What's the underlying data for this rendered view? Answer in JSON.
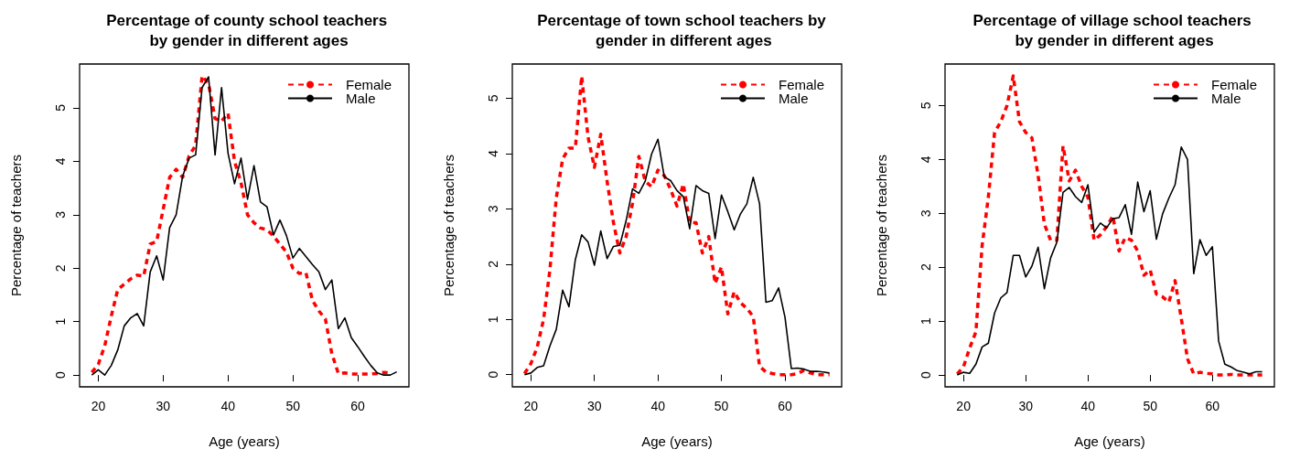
{
  "chart_data": [
    {
      "type": "line",
      "title": "Percentage of county school teachers by gender in different ages",
      "xlabel": "Age (years)",
      "ylabel": "Percentage of teachers",
      "xlim": [
        17.12,
        67.88
      ],
      "xticks": [
        20,
        30,
        40,
        50,
        60
      ],
      "ylim": [
        -0.22,
        5.82
      ],
      "yticks": [
        0,
        1,
        2,
        3,
        4,
        5
      ],
      "grid": false,
      "legend": "top right",
      "marker": "none",
      "series": [
        {
          "name": "Female",
          "color": "#ff0000",
          "line_style": "dashed",
          "x": [
            19,
            20,
            21,
            22,
            23,
            24,
            25,
            26,
            27,
            28,
            29,
            30,
            31,
            32,
            33,
            34,
            35,
            36,
            37,
            38,
            39,
            40,
            41,
            42,
            43,
            44,
            45,
            46,
            47,
            48,
            49,
            50,
            51,
            52,
            53,
            54,
            55,
            56,
            57,
            58,
            59,
            60,
            61,
            62,
            63,
            64,
            65
          ],
          "values": [
            0.05,
            0.2,
            0.55,
            1.1,
            1.6,
            1.7,
            1.8,
            1.87,
            1.85,
            2.45,
            2.5,
            3.1,
            3.7,
            3.85,
            3.7,
            4.1,
            4.3,
            5.6,
            5.45,
            4.8,
            4.75,
            4.9,
            4.0,
            3.6,
            3.0,
            2.85,
            2.75,
            2.72,
            2.6,
            2.45,
            2.3,
            2.0,
            1.9,
            1.92,
            1.4,
            1.2,
            1.05,
            0.4,
            0.03,
            0.04,
            0.02,
            0.02,
            0.02,
            0.02,
            0.03,
            0.05,
            0.04
          ]
        },
        {
          "name": "Male",
          "color": "#000000",
          "line_style": "solid",
          "x": [
            19,
            20,
            21,
            22,
            23,
            24,
            25,
            26,
            27,
            28,
            29,
            30,
            31,
            32,
            33,
            34,
            35,
            36,
            37,
            38,
            39,
            40,
            41,
            42,
            43,
            44,
            45,
            46,
            47,
            48,
            49,
            50,
            51,
            52,
            53,
            54,
            55,
            56,
            57,
            58,
            59,
            60,
            61,
            62,
            63,
            64,
            65,
            66
          ],
          "values": [
            0,
            0.1,
            0,
            0.18,
            0.47,
            0.92,
            1.07,
            1.15,
            0.92,
            1.93,
            2.23,
            1.78,
            2.76,
            3.0,
            3.72,
            4.06,
            4.12,
            5.38,
            5.58,
            4.12,
            5.38,
            4.15,
            3.58,
            4.06,
            3.29,
            3.92,
            3.24,
            3.15,
            2.62,
            2.9,
            2.61,
            2.19,
            2.37,
            2.22,
            2.07,
            1.93,
            1.6,
            1.78,
            0.87,
            1.07,
            0.7,
            0.53,
            0.35,
            0.18,
            0.04,
            0,
            0,
            0.06
          ]
        }
      ]
    },
    {
      "type": "line",
      "title": "Percentage of town school teachers by gender in different ages",
      "xlabel": "Age (years)",
      "ylabel": "Percentage of teachers",
      "xlim": [
        17.08,
        68.92
      ],
      "xticks": [
        20,
        30,
        40,
        50,
        60
      ],
      "ylim": [
        -0.22,
        5.62
      ],
      "yticks": [
        0,
        1,
        2,
        3,
        4,
        5
      ],
      "grid": false,
      "legend": "top right",
      "marker": "none",
      "series": [
        {
          "name": "Female",
          "color": "#ff0000",
          "line_style": "dashed",
          "x": [
            19,
            20,
            21,
            22,
            23,
            24,
            25,
            26,
            27,
            28,
            29,
            30,
            31,
            32,
            33,
            34,
            35,
            36,
            37,
            38,
            39,
            40,
            41,
            42,
            43,
            44,
            45,
            46,
            47,
            48,
            49,
            50,
            51,
            52,
            53,
            54,
            55,
            56,
            57,
            58,
            59,
            60,
            61,
            62,
            63,
            64,
            65,
            66,
            67
          ],
          "values": [
            0.02,
            0.2,
            0.5,
            1.0,
            1.9,
            3.2,
            3.9,
            4.1,
            4.1,
            5.4,
            4.3,
            3.75,
            4.35,
            3.5,
            2.75,
            2.2,
            2.5,
            3.1,
            3.95,
            3.5,
            3.4,
            3.7,
            3.6,
            3.35,
            3.05,
            3.45,
            2.75,
            2.75,
            2.2,
            2.5,
            1.65,
            1.95,
            1.1,
            1.5,
            1.3,
            1.2,
            1.05,
            0.15,
            0.05,
            0.02,
            0,
            0,
            0,
            0.02,
            0.08,
            0.03,
            0,
            0,
            0
          ]
        },
        {
          "name": "Male",
          "color": "#000000",
          "line_style": "solid",
          "x": [
            19,
            20,
            21,
            22,
            23,
            24,
            25,
            26,
            27,
            28,
            29,
            30,
            31,
            32,
            33,
            34,
            35,
            36,
            37,
            38,
            39,
            40,
            41,
            42,
            43,
            44,
            45,
            46,
            47,
            48,
            49,
            50,
            51,
            52,
            53,
            54,
            55,
            56,
            57,
            58,
            59,
            60,
            61,
            62,
            63,
            64,
            65,
            66,
            67
          ],
          "values": [
            0,
            0.03,
            0.13,
            0.16,
            0.52,
            0.82,
            1.53,
            1.23,
            2.08,
            2.53,
            2.4,
            1.98,
            2.6,
            2.1,
            2.32,
            2.34,
            2.79,
            3.36,
            3.28,
            3.5,
            3.99,
            4.26,
            3.58,
            3.51,
            3.33,
            3.22,
            2.64,
            3.42,
            3.33,
            3.28,
            2.46,
            3.25,
            2.95,
            2.62,
            2.91,
            3.09,
            3.57,
            3.09,
            1.31,
            1.34,
            1.57,
            1.04,
            0.11,
            0.12,
            0.1,
            0.06,
            0.06,
            0.05,
            0.03
          ]
        }
      ]
    },
    {
      "type": "line",
      "title": "Percentage of village school teachers by gender in different ages",
      "xlabel": "Age (years)",
      "ylabel": "Percentage of teachers",
      "xlim": [
        17.04,
        69.96
      ],
      "xticks": [
        20,
        30,
        40,
        50,
        60
      ],
      "ylim": [
        -0.22,
        5.77
      ],
      "yticks": [
        0,
        1,
        2,
        3,
        4,
        5
      ],
      "grid": false,
      "legend": "top right",
      "marker": "none",
      "series": [
        {
          "name": "Female",
          "color": "#ff0000",
          "line_style": "dashed",
          "x": [
            19,
            20,
            21,
            22,
            23,
            24,
            25,
            26,
            27,
            28,
            29,
            30,
            31,
            32,
            33,
            34,
            35,
            36,
            37,
            38,
            39,
            40,
            41,
            42,
            43,
            44,
            45,
            46,
            47,
            48,
            49,
            50,
            51,
            52,
            53,
            54,
            55,
            56,
            57,
            58,
            59,
            60,
            61,
            62,
            63,
            64,
            65,
            66,
            67,
            68
          ],
          "values": [
            0.02,
            0.15,
            0.5,
            0.8,
            2.4,
            3.3,
            4.5,
            4.7,
            5.0,
            5.55,
            4.7,
            4.5,
            4.4,
            3.7,
            2.8,
            2.5,
            2.5,
            4.25,
            3.6,
            3.8,
            3.5,
            3.3,
            2.5,
            2.6,
            2.75,
            2.95,
            2.3,
            2.55,
            2.5,
            2.3,
            1.85,
            1.95,
            1.5,
            1.45,
            1.35,
            1.75,
            1.05,
            0.3,
            0.02,
            0.05,
            0.03,
            0.02,
            0,
            0,
            0.01,
            0,
            0,
            0,
            0,
            0
          ]
        },
        {
          "name": "Male",
          "color": "#000000",
          "line_style": "solid",
          "x": [
            19,
            20,
            21,
            22,
            23,
            24,
            25,
            26,
            27,
            28,
            29,
            30,
            31,
            32,
            33,
            34,
            35,
            36,
            37,
            38,
            39,
            40,
            41,
            42,
            43,
            44,
            45,
            46,
            47,
            48,
            49,
            50,
            51,
            52,
            53,
            54,
            55,
            56,
            57,
            58,
            59,
            60,
            61,
            62,
            63,
            64,
            65,
            66,
            67,
            68
          ],
          "values": [
            0,
            0.05,
            0.03,
            0.2,
            0.52,
            0.59,
            1.15,
            1.43,
            1.53,
            2.22,
            2.22,
            1.82,
            2.02,
            2.37,
            1.6,
            2.17,
            2.46,
            3.39,
            3.48,
            3.31,
            3.2,
            3.53,
            2.65,
            2.82,
            2.73,
            2.9,
            2.92,
            3.16,
            2.61,
            3.58,
            3.03,
            3.42,
            2.52,
            2.99,
            3.28,
            3.53,
            4.23,
            4.0,
            1.88,
            2.51,
            2.22,
            2.38,
            0.63,
            0.2,
            0.15,
            0.08,
            0.05,
            0.02,
            0.06,
            0.06
          ]
        }
      ]
    }
  ]
}
